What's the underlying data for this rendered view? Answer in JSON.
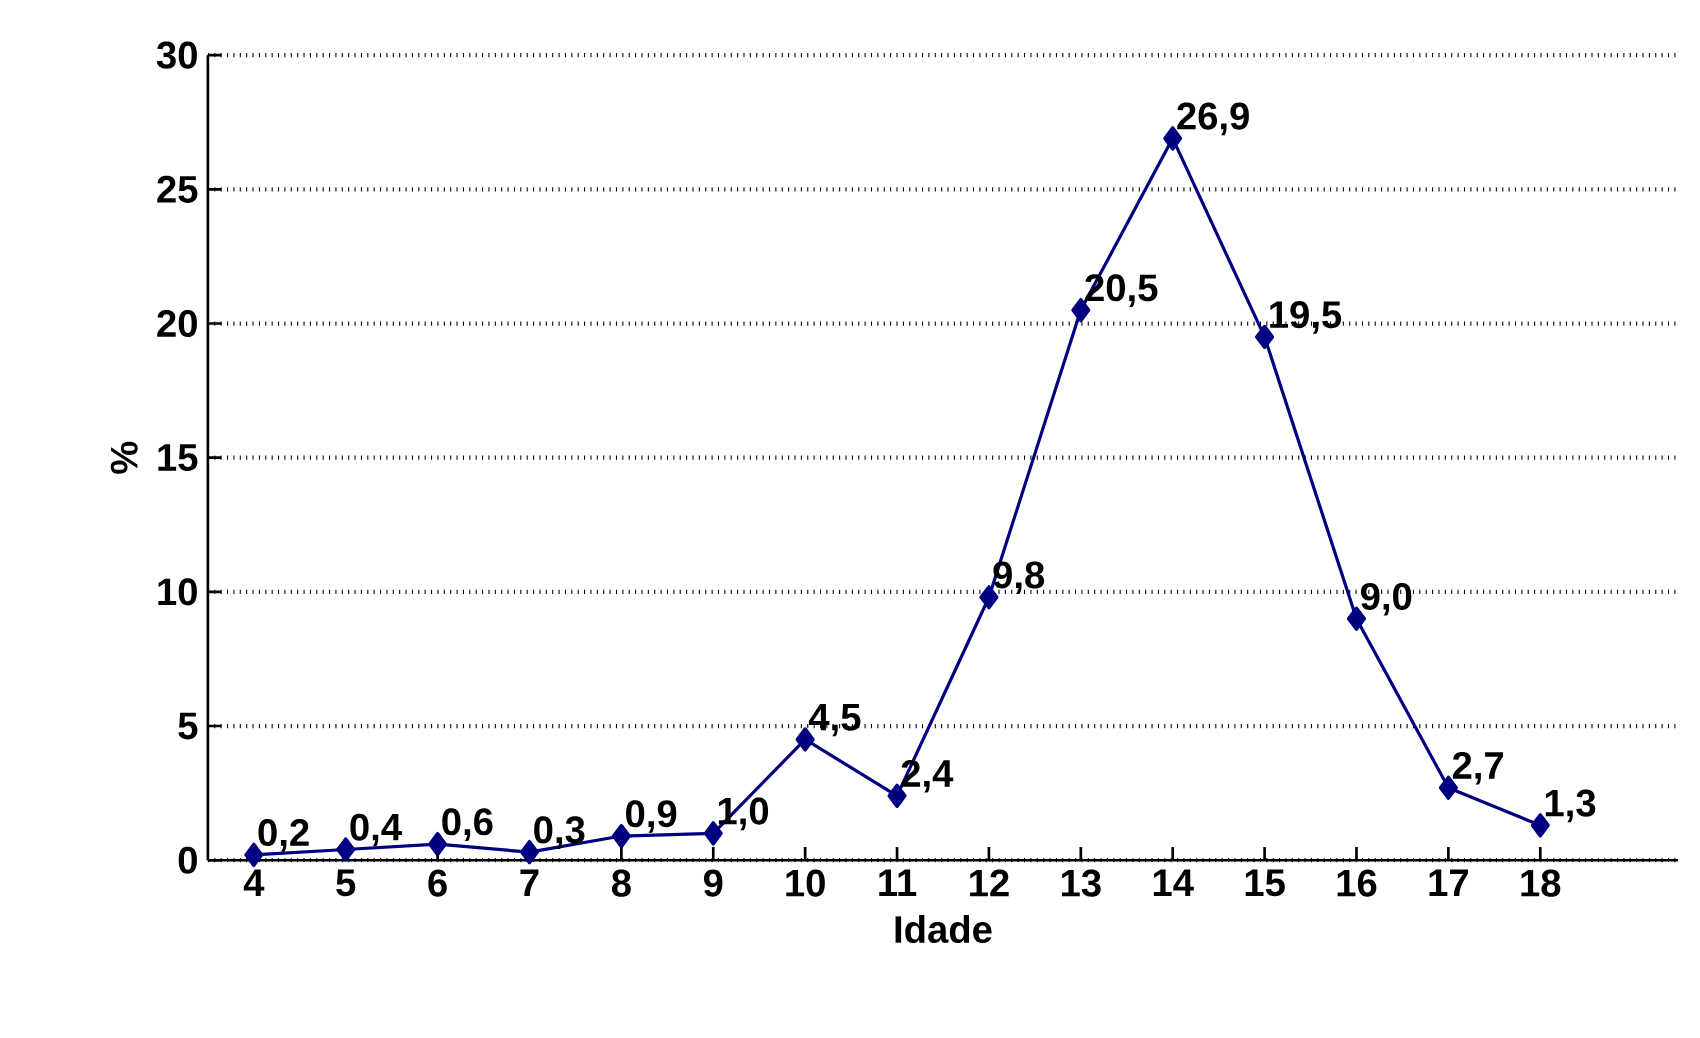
{
  "chart_data": {
    "type": "line",
    "xlabel": "Idade",
    "ylabel": "%",
    "categories": [
      "4",
      "5",
      "6",
      "7",
      "8",
      "9",
      "10",
      "11",
      "12",
      "13",
      "14",
      "15",
      "16",
      "17",
      "18"
    ],
    "values": [
      0.2,
      0.4,
      0.6,
      0.3,
      0.9,
      1.0,
      4.5,
      2.4,
      9.8,
      20.5,
      26.9,
      19.5,
      9.0,
      2.7,
      1.3
    ],
    "value_labels": [
      "0,2",
      "0,4",
      "0,6",
      "0,3",
      "0,9",
      "1,0",
      "4,5",
      "2,4",
      "9,8",
      "20,5",
      "26,9",
      "19,5",
      "9,0",
      "2,7",
      "1,3"
    ],
    "color": "#000080",
    "marker": "diamond",
    "line_style": "solid",
    "grid": "y",
    "ylim": [
      0,
      30
    ],
    "yticks": [
      0,
      5,
      10,
      15,
      20,
      25,
      30
    ]
  }
}
